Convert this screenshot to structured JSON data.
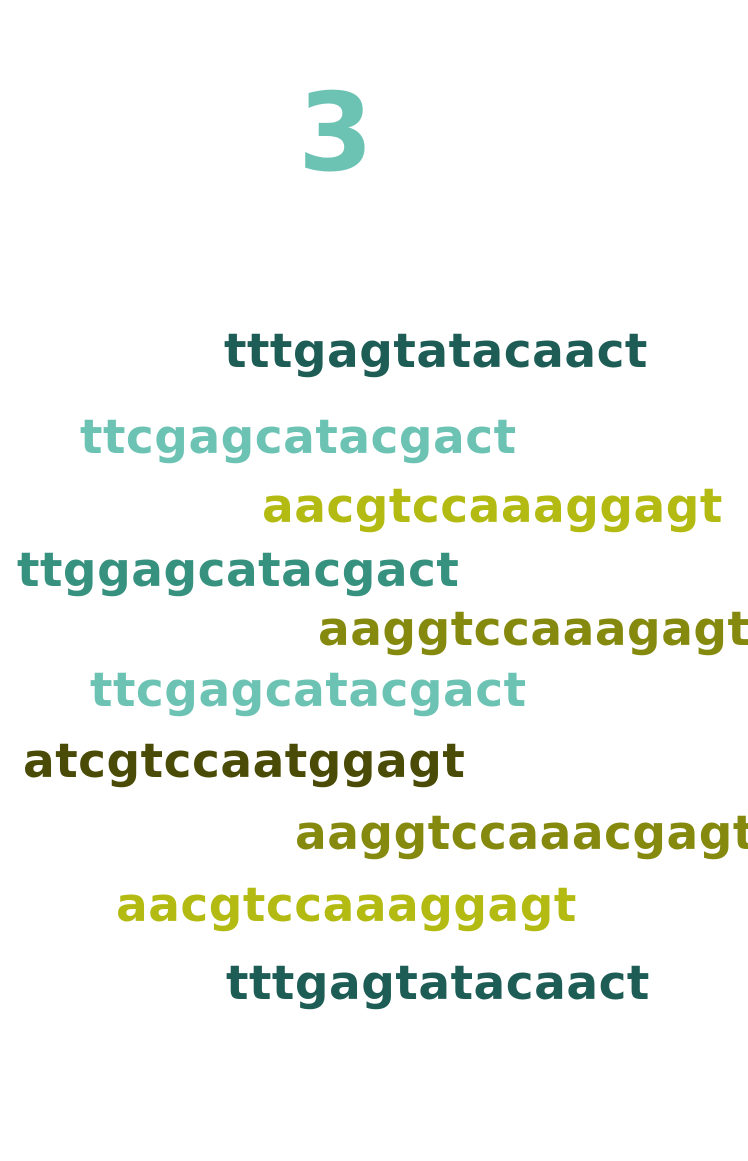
{
  "number": "3",
  "sequences": [
    {
      "text": "tttgagtatacaact",
      "color": "#1e5d55"
    },
    {
      "text": "ttcgagcatacgact",
      "color": "#6cc3b4"
    },
    {
      "text": "aacgtccaaaggagt",
      "color": "#b3bb12"
    },
    {
      "text": "ttggagcatacgact",
      "color": "#36917f"
    },
    {
      "text": "aaggtccaaagagt",
      "color": "#858a0e"
    },
    {
      "text": "ttcgagcatacgact",
      "color": "#6cc3b4"
    },
    {
      "text": "atcgtccaatggagt",
      "color": "#4a4b06"
    },
    {
      "text": "aaggtccaaacgagt",
      "color": "#858a0e"
    },
    {
      "text": "aacgtccaaaggagt",
      "color": "#b3bb12"
    },
    {
      "text": "tttgagtatacaact",
      "color": "#1e5d55"
    }
  ]
}
